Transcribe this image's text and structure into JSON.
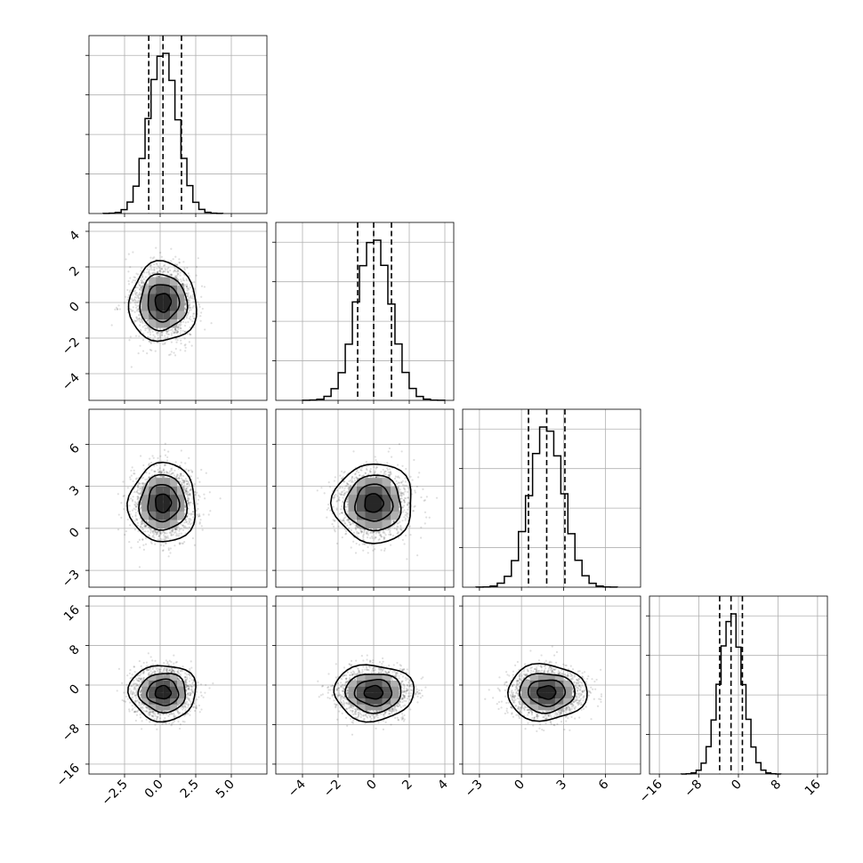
{
  "chart_data": {
    "type": "corner",
    "n_params": 4,
    "params": [
      {
        "lim": [
          -5.0,
          7.5
        ],
        "ticks": [
          -2.5,
          0.0,
          2.5,
          5.0
        ],
        "tick_labels": [
          "−2.5",
          "0.0",
          "2.5",
          "5.0"
        ],
        "mean": 0.2,
        "sd": 1.0,
        "quantiles": [
          -0.8,
          0.2,
          1.5
        ]
      },
      {
        "lim": [
          -5.5,
          4.5
        ],
        "ticks": [
          -4,
          -2,
          0,
          2,
          4
        ],
        "tick_labels": [
          "−4",
          "−2",
          "0",
          "2",
          "4"
        ],
        "mean": 0.0,
        "sd": 0.95,
        "quantiles": [
          -0.9,
          0.0,
          1.0
        ]
      },
      {
        "lim": [
          -4.2,
          8.5
        ],
        "ticks": [
          -3,
          0,
          3,
          6
        ],
        "tick_labels": [
          "−3",
          "0",
          "3",
          "6"
        ],
        "mean": 1.8,
        "sd": 1.2,
        "quantiles": [
          0.5,
          1.8,
          3.1
        ]
      },
      {
        "lim": [
          -18,
          18
        ],
        "ticks": [
          -16,
          -8,
          0,
          8,
          16
        ],
        "tick_labels": [
          "−16",
          "−8",
          "0",
          "8",
          "16"
        ],
        "mean": -1.5,
        "sd": 2.4,
        "quantiles": [
          -3.8,
          -1.5,
          0.8
        ]
      }
    ],
    "pairs": [
      {
        "x": 0,
        "y": 1,
        "mean": [
          0.2,
          0.0
        ],
        "sd": [
          1.0,
          0.95
        ]
      },
      {
        "x": 0,
        "y": 2,
        "mean": [
          0.2,
          1.8
        ],
        "sd": [
          1.0,
          1.2
        ]
      },
      {
        "x": 1,
        "y": 2,
        "mean": [
          0.0,
          1.8
        ],
        "sd": [
          0.95,
          1.2
        ]
      },
      {
        "x": 0,
        "y": 3,
        "mean": [
          0.2,
          -1.5
        ],
        "sd": [
          1.0,
          2.4
        ]
      },
      {
        "x": 1,
        "y": 3,
        "mean": [
          0.0,
          -1.5
        ],
        "sd": [
          0.95,
          2.4
        ]
      },
      {
        "x": 2,
        "y": 3,
        "mean": [
          1.8,
          -1.5
        ],
        "sd": [
          1.2,
          2.4
        ]
      }
    ],
    "contour_levels_sigma": [
      0.5,
      1.0,
      1.5,
      2.0
    ],
    "histogram_bins": 20,
    "grid": true,
    "line_color": "#000000",
    "points_color": "#000000",
    "grid_color": "#b0b0b0"
  }
}
